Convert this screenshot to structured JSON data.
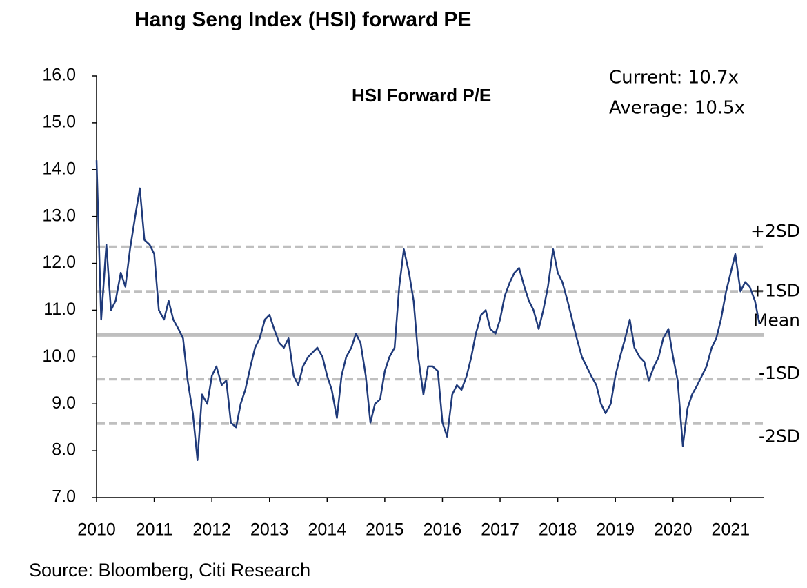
{
  "chart_data": {
    "type": "line",
    "title": "Hang Seng Index (HSI) forward PE",
    "subtitle": "HSI Forward P/E",
    "annotations": [
      "Current: 10.7x",
      "Average: 10.5x"
    ],
    "source": "Source: Bloomberg, Citi Research",
    "xlim": [
      2010,
      2021.57
    ],
    "xticks": [
      2010,
      2011,
      2012,
      2013,
      2014,
      2015,
      2016,
      2017,
      2018,
      2019,
      2020,
      2021
    ],
    "ylim": [
      7,
      16
    ],
    "yticks": [
      {
        "value": 7,
        "label": "7.0"
      },
      {
        "value": 8,
        "label": "8.0"
      },
      {
        "value": 9,
        "label": "9.0"
      },
      {
        "value": 10,
        "label": "10.0"
      },
      {
        "value": 11,
        "label": "11.0"
      },
      {
        "value": 12,
        "label": "12.0"
      },
      {
        "value": 13,
        "label": "13.0"
      },
      {
        "value": 14,
        "label": "14.0"
      },
      {
        "value": 15,
        "label": "15.0"
      },
      {
        "value": 16,
        "label": "16.0"
      }
    ],
    "reference_lines": [
      {
        "label": "+2SD",
        "value": 12.35,
        "dashed": true
      },
      {
        "label": "+1SD",
        "value": 11.4,
        "dashed": true
      },
      {
        "label": "Mean",
        "value": 10.47,
        "dashed": false
      },
      {
        "label": "-1SD",
        "value": 9.53,
        "dashed": true
      },
      {
        "label": "-2SD",
        "value": 8.58,
        "dashed": true
      }
    ],
    "reference_color": "#bfbfbf",
    "series": [
      {
        "name": "HSI Forward P/E",
        "color": "#1f3a7a",
        "x": [
          2010.0,
          2010.08,
          2010.17,
          2010.25,
          2010.33,
          2010.42,
          2010.5,
          2010.58,
          2010.67,
          2010.75,
          2010.83,
          2010.92,
          2011.0,
          2011.08,
          2011.17,
          2011.25,
          2011.33,
          2011.42,
          2011.5,
          2011.58,
          2011.67,
          2011.75,
          2011.83,
          2011.92,
          2012.0,
          2012.08,
          2012.17,
          2012.25,
          2012.33,
          2012.42,
          2012.5,
          2012.58,
          2012.67,
          2012.75,
          2012.83,
          2012.92,
          2013.0,
          2013.08,
          2013.17,
          2013.25,
          2013.33,
          2013.42,
          2013.5,
          2013.58,
          2013.67,
          2013.75,
          2013.83,
          2013.92,
          2014.0,
          2014.08,
          2014.17,
          2014.25,
          2014.33,
          2014.42,
          2014.5,
          2014.58,
          2014.67,
          2014.75,
          2014.83,
          2014.92,
          2015.0,
          2015.08,
          2015.17,
          2015.25,
          2015.33,
          2015.42,
          2015.5,
          2015.58,
          2015.67,
          2015.75,
          2015.83,
          2015.92,
          2016.0,
          2016.08,
          2016.17,
          2016.25,
          2016.33,
          2016.42,
          2016.5,
          2016.58,
          2016.67,
          2016.75,
          2016.83,
          2016.92,
          2017.0,
          2017.08,
          2017.17,
          2017.25,
          2017.33,
          2017.42,
          2017.5,
          2017.58,
          2017.67,
          2017.75,
          2017.83,
          2017.92,
          2018.0,
          2018.08,
          2018.17,
          2018.25,
          2018.33,
          2018.42,
          2018.5,
          2018.58,
          2018.67,
          2018.75,
          2018.83,
          2018.92,
          2019.0,
          2019.08,
          2019.17,
          2019.25,
          2019.33,
          2019.42,
          2019.5,
          2019.58,
          2019.67,
          2019.75,
          2019.83,
          2019.92,
          2020.0,
          2020.08,
          2020.17,
          2020.25,
          2020.33,
          2020.42,
          2020.5,
          2020.58,
          2020.67,
          2020.75,
          2020.83,
          2020.92,
          2021.0,
          2021.08,
          2021.17,
          2021.25,
          2021.33,
          2021.42,
          2021.5
        ],
        "values": [
          14.2,
          10.8,
          12.4,
          11.0,
          11.2,
          11.8,
          11.5,
          12.3,
          13.0,
          13.6,
          12.5,
          12.4,
          12.2,
          11.0,
          10.8,
          11.2,
          10.8,
          10.6,
          10.4,
          9.5,
          8.8,
          7.8,
          9.2,
          9.0,
          9.6,
          9.8,
          9.4,
          9.5,
          8.6,
          8.5,
          9.0,
          9.3,
          9.8,
          10.2,
          10.4,
          10.8,
          10.9,
          10.6,
          10.3,
          10.2,
          10.4,
          9.6,
          9.4,
          9.8,
          10.0,
          10.1,
          10.2,
          10.0,
          9.6,
          9.3,
          8.7,
          9.6,
          10.0,
          10.2,
          10.5,
          10.3,
          9.6,
          8.6,
          9.0,
          9.1,
          9.7,
          10.0,
          10.2,
          11.5,
          12.3,
          11.8,
          11.2,
          10.0,
          9.2,
          9.8,
          9.8,
          9.7,
          8.6,
          8.3,
          9.2,
          9.4,
          9.3,
          9.6,
          10.0,
          10.5,
          10.9,
          11.0,
          10.6,
          10.5,
          10.8,
          11.3,
          11.6,
          11.8,
          11.9,
          11.5,
          11.2,
          11.0,
          10.6,
          11.0,
          11.5,
          12.3,
          11.8,
          11.6,
          11.2,
          10.8,
          10.4,
          10.0,
          9.8,
          9.6,
          9.4,
          9.0,
          8.8,
          9.0,
          9.6,
          10.0,
          10.4,
          10.8,
          10.2,
          10.0,
          9.9,
          9.5,
          9.8,
          10.0,
          10.4,
          10.6,
          10.0,
          9.5,
          8.1,
          8.9,
          9.2,
          9.4,
          9.6,
          9.8,
          10.2,
          10.4,
          10.8,
          11.4,
          11.8,
          12.2,
          11.4,
          11.6,
          11.5,
          11.2,
          10.7
        ]
      }
    ]
  }
}
